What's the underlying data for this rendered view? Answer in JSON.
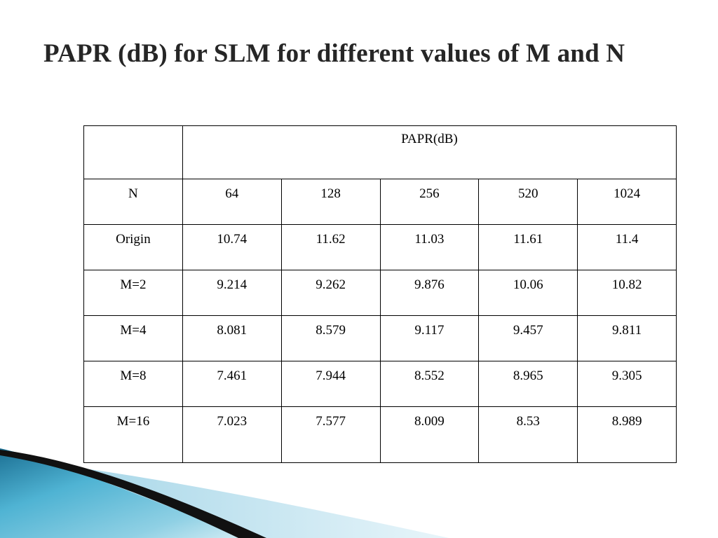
{
  "slide": {
    "title": "PAPR  (dB) for SLM for different values of M and N"
  },
  "table": {
    "group_header": "PAPR(dB)",
    "n_label": "N",
    "n_values": [
      "64",
      "128",
      "256",
      "520",
      "1024"
    ],
    "rows": [
      {
        "label": "Origin",
        "values": [
          "10.74",
          "11.62",
          "11.03",
          "11.61",
          "11.4"
        ]
      },
      {
        "label": "M=2",
        "values": [
          "9.214",
          "9.262",
          "9.876",
          "10.06",
          "10.82"
        ]
      },
      {
        "label": "M=4",
        "values": [
          "8.081",
          "8.579",
          "9.117",
          "9.457",
          "9.811"
        ]
      },
      {
        "label": "M=8",
        "values": [
          "7.461",
          "7.944",
          "8.552",
          "8.965",
          "9.305"
        ]
      },
      {
        "label": "M=16",
        "values": [
          "7.023",
          "7.577",
          "8.009",
          "8.53",
          "8.989"
        ]
      }
    ]
  },
  "colors": {
    "swoosh_light": "#bfe3ef",
    "swoosh_mid": "#4fb3d3",
    "swoosh_dark": "#1b6f93",
    "swoosh_black": "#111111"
  }
}
